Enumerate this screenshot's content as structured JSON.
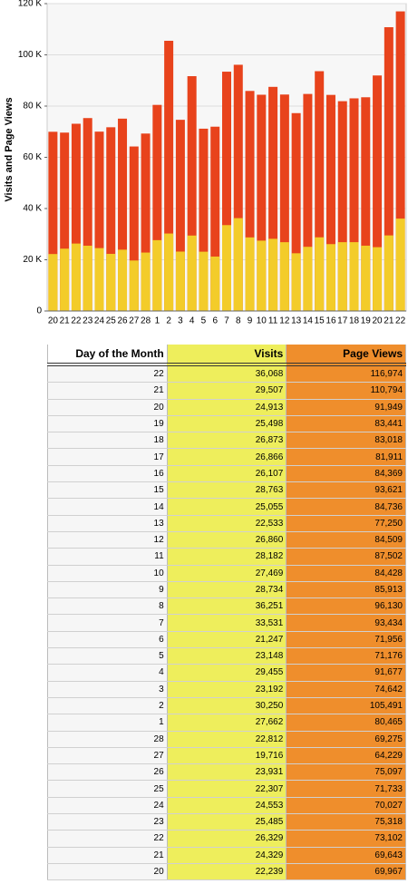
{
  "chart_data": {
    "type": "bar",
    "y_label": "Visits and Page Views",
    "x_label": "Day of the Month",
    "categories": [
      "20",
      "21",
      "22",
      "23",
      "24",
      "25",
      "26",
      "27",
      "28",
      "1",
      "2",
      "3",
      "4",
      "5",
      "6",
      "7",
      "8",
      "9",
      "10",
      "11",
      "12",
      "13",
      "14",
      "15",
      "16",
      "17",
      "18",
      "19",
      "20",
      "21",
      "22"
    ],
    "series": [
      {
        "name": "Page Views",
        "color": "#e8431c",
        "table_color": "#ef8e2c",
        "values": [
          69967,
          69643,
          73102,
          75318,
          70027,
          71733,
          75097,
          64229,
          69275,
          80465,
          105491,
          74642,
          91677,
          71176,
          71956,
          93434,
          96130,
          85913,
          84428,
          87502,
          84509,
          77250,
          84736,
          93621,
          84369,
          81911,
          83018,
          83441,
          91949,
          110794,
          116974
        ],
        "value_labels": [
          "69,967",
          "69,643",
          "73,102",
          "75,318",
          "70,027",
          "71,733",
          "75,097",
          "64,229",
          "69,275",
          "80,465",
          "105,491",
          "74,642",
          "91,677",
          "71,176",
          "71,956",
          "93,434",
          "96,130",
          "85,913",
          "84,428",
          "87,502",
          "84,509",
          "77,250",
          "84,736",
          "93,621",
          "84,369",
          "81,911",
          "83,018",
          "83,441",
          "91,949",
          "110,794",
          "116,974"
        ]
      },
      {
        "name": "Visits",
        "color": "#f3cc2a",
        "table_color": "#eeee5c",
        "values": [
          22239,
          24329,
          26329,
          25485,
          24553,
          22307,
          23931,
          19716,
          22812,
          27662,
          30250,
          23192,
          29455,
          23148,
          21247,
          33531,
          36251,
          28734,
          27469,
          28182,
          26860,
          22533,
          25055,
          28763,
          26107,
          26866,
          26873,
          25498,
          24913,
          29507,
          36068
        ],
        "value_labels": [
          "22,239",
          "24,329",
          "26,329",
          "25,485",
          "24,553",
          "22,307",
          "23,931",
          "19,716",
          "22,812",
          "27,662",
          "30,250",
          "23,192",
          "29,455",
          "23,148",
          "21,247",
          "33,531",
          "36,251",
          "28,734",
          "27,469",
          "28,182",
          "26,860",
          "22,533",
          "25,055",
          "28,763",
          "26,107",
          "26,866",
          "26,873",
          "25,498",
          "24,913",
          "29,507",
          "36,068"
        ]
      }
    ],
    "ylim": [
      0,
      120000
    ],
    "yticks": [
      0,
      {
        "value": 20000,
        "label": "20 K"
      },
      {
        "value": 40000,
        "label": "40 K"
      },
      {
        "value": 60000,
        "label": "60 K"
      },
      {
        "value": 80000,
        "label": "80 K"
      },
      {
        "value": 100000,
        "label": "100 K"
      },
      {
        "value": 120000,
        "label": "120 K"
      }
    ],
    "grid": true
  }
}
